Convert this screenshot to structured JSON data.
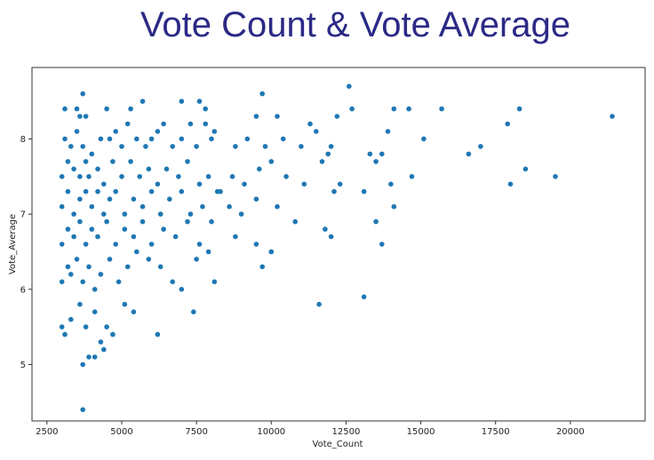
{
  "chart_data": {
    "type": "scatter",
    "title": "Vote Count & Vote Average",
    "xlabel": "Vote_Count",
    "ylabel": "Vote_Average",
    "xlim": [
      2000,
      22500
    ],
    "ylim": [
      4.25,
      8.95
    ],
    "xticks": [
      "2500",
      "5000",
      "7500",
      "10000",
      "12500",
      "15000",
      "17500",
      "20000"
    ],
    "yticks": [
      "5",
      "6",
      "7",
      "8"
    ],
    "grid": false,
    "point_color": "#1f77b4",
    "series": [
      {
        "points": [
          [
            3700,
            8.6
          ],
          [
            3100,
            8.4
          ],
          [
            3500,
            8.4
          ],
          [
            3600,
            8.3
          ],
          [
            3800,
            8.3
          ],
          [
            4500,
            8.4
          ],
          [
            5300,
            8.4
          ],
          [
            5700,
            8.5
          ],
          [
            6200,
            8.1
          ],
          [
            7000,
            8.5
          ],
          [
            7600,
            8.5
          ],
          [
            7800,
            8.4
          ],
          [
            8100,
            8.1
          ],
          [
            9500,
            8.3
          ],
          [
            9700,
            8.6
          ],
          [
            10200,
            8.3
          ],
          [
            11300,
            8.2
          ],
          [
            12200,
            8.3
          ],
          [
            12600,
            8.7
          ],
          [
            12700,
            8.4
          ],
          [
            14100,
            8.4
          ],
          [
            14600,
            8.4
          ],
          [
            15700,
            8.4
          ],
          [
            17900,
            8.2
          ],
          [
            18300,
            8.4
          ],
          [
            21400,
            8.3
          ],
          [
            3100,
            8.0
          ],
          [
            3300,
            7.9
          ],
          [
            3500,
            8.1
          ],
          [
            3700,
            7.9
          ],
          [
            4000,
            7.8
          ],
          [
            4300,
            8.0
          ],
          [
            4600,
            8.0
          ],
          [
            4800,
            8.1
          ],
          [
            5000,
            7.9
          ],
          [
            5200,
            8.2
          ],
          [
            5500,
            8.0
          ],
          [
            5800,
            7.9
          ],
          [
            6000,
            8.0
          ],
          [
            6400,
            8.2
          ],
          [
            6700,
            7.9
          ],
          [
            7000,
            8.0
          ],
          [
            7300,
            8.2
          ],
          [
            7500,
            7.9
          ],
          [
            7800,
            8.2
          ],
          [
            8000,
            8.0
          ],
          [
            8800,
            7.9
          ],
          [
            9200,
            8.0
          ],
          [
            9800,
            7.9
          ],
          [
            10400,
            8.0
          ],
          [
            11000,
            7.9
          ],
          [
            11500,
            8.1
          ],
          [
            11900,
            7.8
          ],
          [
            12000,
            7.9
          ],
          [
            13300,
            7.8
          ],
          [
            13700,
            7.8
          ],
          [
            13900,
            8.1
          ],
          [
            15100,
            8.0
          ],
          [
            17000,
            7.9
          ],
          [
            3000,
            7.5
          ],
          [
            3200,
            7.7
          ],
          [
            3400,
            7.6
          ],
          [
            3600,
            7.5
          ],
          [
            3800,
            7.7
          ],
          [
            3900,
            7.5
          ],
          [
            4200,
            7.6
          ],
          [
            4400,
            7.4
          ],
          [
            4700,
            7.7
          ],
          [
            5000,
            7.5
          ],
          [
            5300,
            7.7
          ],
          [
            5600,
            7.5
          ],
          [
            5900,
            7.6
          ],
          [
            6200,
            7.4
          ],
          [
            6500,
            7.6
          ],
          [
            6900,
            7.5
          ],
          [
            7200,
            7.7
          ],
          [
            7600,
            7.4
          ],
          [
            7900,
            7.5
          ],
          [
            8300,
            7.3
          ],
          [
            8700,
            7.5
          ],
          [
            9100,
            7.4
          ],
          [
            9600,
            7.6
          ],
          [
            10000,
            7.7
          ],
          [
            10500,
            7.5
          ],
          [
            11100,
            7.4
          ],
          [
            11700,
            7.7
          ],
          [
            12300,
            7.4
          ],
          [
            13100,
            7.3
          ],
          [
            13500,
            7.7
          ],
          [
            14000,
            7.4
          ],
          [
            14700,
            7.5
          ],
          [
            16600,
            7.8
          ],
          [
            18000,
            7.4
          ],
          [
            18500,
            7.6
          ],
          [
            19500,
            7.5
          ],
          [
            3000,
            7.1
          ],
          [
            3200,
            7.3
          ],
          [
            3400,
            7.0
          ],
          [
            3600,
            7.2
          ],
          [
            3800,
            7.3
          ],
          [
            4000,
            7.1
          ],
          [
            4200,
            7.3
          ],
          [
            4400,
            7.0
          ],
          [
            4600,
            7.2
          ],
          [
            4800,
            7.3
          ],
          [
            5100,
            7.0
          ],
          [
            5400,
            7.2
          ],
          [
            5700,
            7.1
          ],
          [
            6000,
            7.3
          ],
          [
            6300,
            7.0
          ],
          [
            6600,
            7.2
          ],
          [
            7000,
            7.3
          ],
          [
            7300,
            7.0
          ],
          [
            7700,
            7.1
          ],
          [
            8200,
            7.3
          ],
          [
            8600,
            7.1
          ],
          [
            9000,
            7.0
          ],
          [
            9500,
            7.2
          ],
          [
            10200,
            7.1
          ],
          [
            10800,
            6.9
          ],
          [
            12100,
            7.3
          ],
          [
            14100,
            7.1
          ],
          [
            3000,
            6.6
          ],
          [
            3200,
            6.8
          ],
          [
            3400,
            6.7
          ],
          [
            3600,
            6.9
          ],
          [
            3800,
            6.6
          ],
          [
            4000,
            6.8
          ],
          [
            4200,
            6.7
          ],
          [
            4500,
            6.9
          ],
          [
            4800,
            6.6
          ],
          [
            5100,
            6.8
          ],
          [
            5400,
            6.7
          ],
          [
            5700,
            6.9
          ],
          [
            6000,
            6.6
          ],
          [
            6400,
            6.8
          ],
          [
            6800,
            6.7
          ],
          [
            7200,
            6.9
          ],
          [
            7600,
            6.6
          ],
          [
            8000,
            6.9
          ],
          [
            8800,
            6.7
          ],
          [
            9500,
            6.6
          ],
          [
            10000,
            6.5
          ],
          [
            11800,
            6.8
          ],
          [
            12000,
            6.7
          ],
          [
            13500,
            6.9
          ],
          [
            13700,
            6.6
          ],
          [
            3000,
            6.1
          ],
          [
            3200,
            6.3
          ],
          [
            3300,
            6.2
          ],
          [
            3500,
            6.4
          ],
          [
            3700,
            6.1
          ],
          [
            3900,
            6.3
          ],
          [
            4100,
            6.0
          ],
          [
            4300,
            6.2
          ],
          [
            4600,
            6.4
          ],
          [
            4900,
            6.1
          ],
          [
            5200,
            6.3
          ],
          [
            5500,
            6.5
          ],
          [
            5900,
            6.4
          ],
          [
            6300,
            6.3
          ],
          [
            6700,
            6.1
          ],
          [
            7000,
            6.0
          ],
          [
            7500,
            6.4
          ],
          [
            7900,
            6.5
          ],
          [
            8100,
            6.1
          ],
          [
            9700,
            6.3
          ],
          [
            10000,
            6.5
          ],
          [
            3000,
            5.5
          ],
          [
            3100,
            5.4
          ],
          [
            3300,
            5.6
          ],
          [
            3600,
            5.8
          ],
          [
            3800,
            5.5
          ],
          [
            4100,
            5.7
          ],
          [
            4300,
            5.3
          ],
          [
            4500,
            5.5
          ],
          [
            4700,
            5.4
          ],
          [
            5100,
            5.8
          ],
          [
            5400,
            5.7
          ],
          [
            6200,
            5.4
          ],
          [
            7400,
            5.7
          ],
          [
            11600,
            5.8
          ],
          [
            13100,
            5.9
          ],
          [
            3700,
            5.0
          ],
          [
            3900,
            5.1
          ],
          [
            4100,
            5.1
          ],
          [
            4400,
            5.2
          ],
          [
            3700,
            4.4
          ]
        ]
      }
    ]
  }
}
